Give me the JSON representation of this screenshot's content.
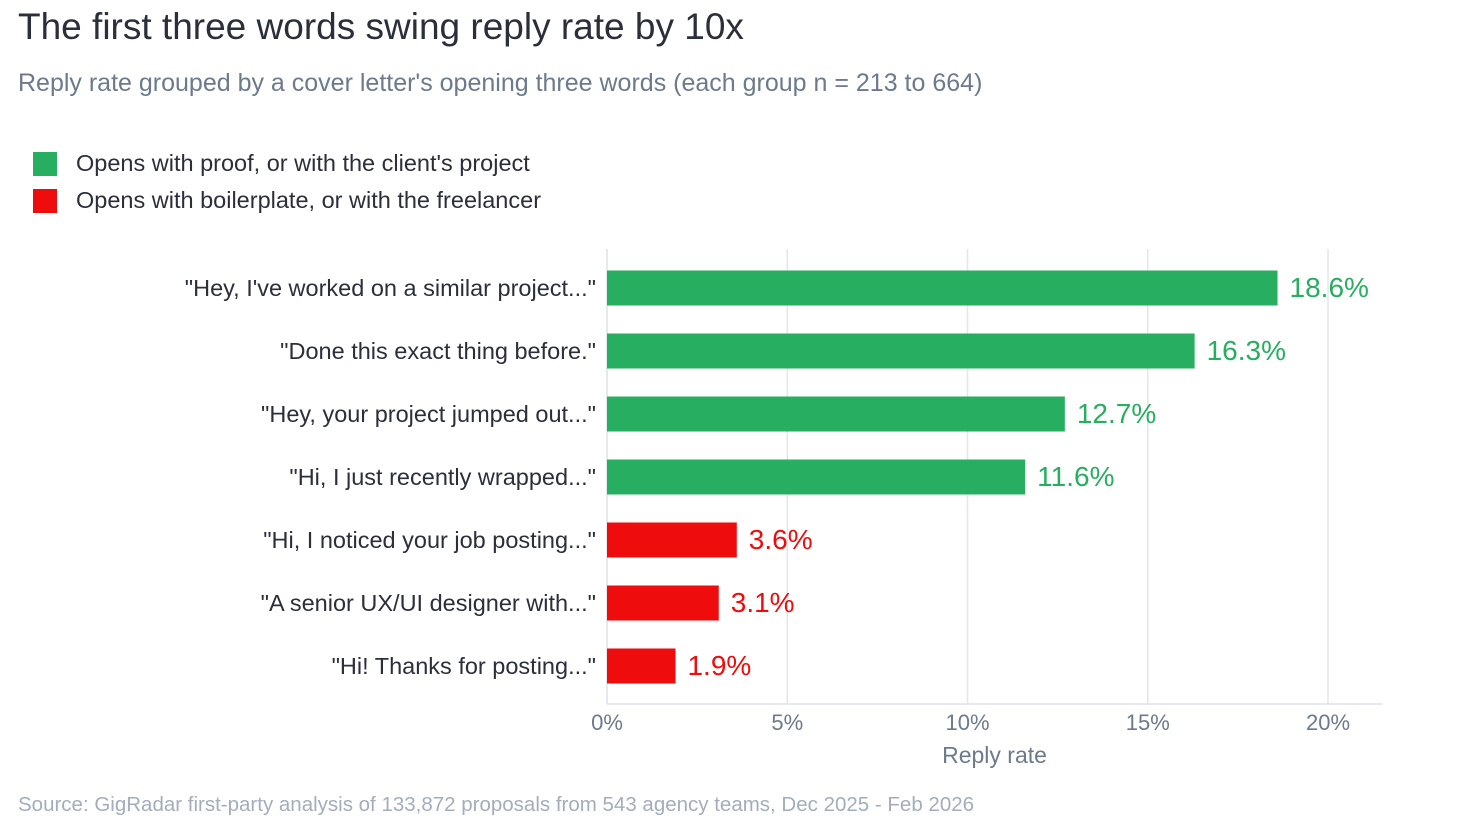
{
  "header": {
    "title": "The first three words swing reply rate by 10x",
    "subtitle": "Reply rate grouped by a cover letter's opening three words (each group n = 213 to 664)"
  },
  "legend": [
    {
      "label": "Opens with proof, or with the client's project",
      "color": "#27ae60"
    },
    {
      "label": "Opens with boilerplate, or with the freelancer",
      "color": "#ee0c0c"
    }
  ],
  "chart_data": {
    "type": "bar",
    "orientation": "horizontal",
    "categories": [
      "\"Hey, I've worked on a similar project...\"",
      "\"Done this exact thing before.\"",
      "\"Hey, your project jumped out...\"",
      "\"Hi, I just recently wrapped...\"",
      "\"Hi, I noticed your job posting...\"",
      "\"A senior UX/UI designer with...\"",
      "\"Hi! Thanks for posting...\""
    ],
    "values": [
      18.6,
      16.3,
      12.7,
      11.6,
      3.6,
      3.1,
      1.9
    ],
    "value_labels": [
      "18.6%",
      "16.3%",
      "12.7%",
      "11.6%",
      "3.6%",
      "3.1%",
      "1.9%"
    ],
    "groups": [
      0,
      0,
      0,
      0,
      1,
      1,
      1
    ],
    "xlabel": "Reply rate",
    "xlim": [
      0,
      21.5
    ],
    "x_ticks": [
      0,
      5,
      10,
      15,
      20
    ],
    "x_tick_labels": [
      "0%",
      "5%",
      "10%",
      "15%",
      "20%"
    ],
    "grid": "vertical",
    "legend_position": "top-left"
  },
  "footer": {
    "source": "Source: GigRadar first-party analysis of 133,872 proposals from 543 agency teams, Dec 2025 - Feb 2026"
  }
}
